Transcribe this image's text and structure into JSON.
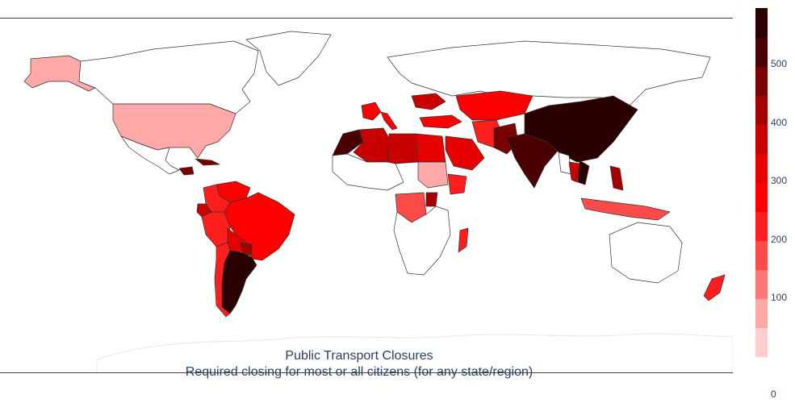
{
  "title": "Public Transport Closures",
  "subtitle": "Required closing for most or all citizens (for any state/region)",
  "colorbar": {
    "ticks": [
      {
        "label": "500",
        "value": 500
      },
      {
        "label": "400",
        "value": 400
      },
      {
        "label": "300",
        "value": 300
      },
      {
        "label": "200",
        "value": 200
      },
      {
        "label": "100",
        "value": 100
      },
      {
        "label": "0",
        "value": 0
      }
    ],
    "range": [
      0,
      595
    ],
    "colors": [
      "#ffcfcf",
      "#ffa8a8",
      "#ff7878",
      "#ff4a4a",
      "#ff1e1e",
      "#ff0000",
      "#e60000",
      "#c80000",
      "#a50000",
      "#7a0000",
      "#4a0000",
      "#2b0000"
    ]
  },
  "regions": [
    {
      "name": "Alaska",
      "value": 60
    },
    {
      "name": "United States",
      "value": 60
    },
    {
      "name": "Canada",
      "value": 0
    },
    {
      "name": "Greenland",
      "value": 0
    },
    {
      "name": "Mexico",
      "value": 0
    },
    {
      "name": "Honduras",
      "value": 470
    },
    {
      "name": "Cuba",
      "value": 470
    },
    {
      "name": "Colombia",
      "value": 220
    },
    {
      "name": "Venezuela",
      "value": 250
    },
    {
      "name": "Ecuador",
      "value": 360
    },
    {
      "name": "Peru",
      "value": 230
    },
    {
      "name": "Bolivia",
      "value": 340
    },
    {
      "name": "Brazil",
      "value": 280
    },
    {
      "name": "Paraguay",
      "value": 420
    },
    {
      "name": "Argentina",
      "value": 570
    },
    {
      "name": "Chile",
      "value": 200
    },
    {
      "name": "Morocco",
      "value": 540
    },
    {
      "name": "Algeria",
      "value": 360
    },
    {
      "name": "Libya",
      "value": 350
    },
    {
      "name": "Egypt",
      "value": 320
    },
    {
      "name": "Sudan",
      "value": 80
    },
    {
      "name": "Ethiopia",
      "value": 240
    },
    {
      "name": "DR Congo",
      "value": 150
    },
    {
      "name": "Uganda",
      "value": 420
    },
    {
      "name": "Madagascar",
      "value": 230
    },
    {
      "name": "Saudi Arabia",
      "value": 330
    },
    {
      "name": "Iran",
      "value": 220
    },
    {
      "name": "Pakistan",
      "value": 480
    },
    {
      "name": "India",
      "value": 520
    },
    {
      "name": "China",
      "value": 590
    },
    {
      "name": "Myanmar",
      "value": 0
    },
    {
      "name": "Thailand",
      "value": 380
    },
    {
      "name": "Vietnam",
      "value": 550
    },
    {
      "name": "Philippines",
      "value": 430
    },
    {
      "name": "Indonesia",
      "value": 150
    },
    {
      "name": "Kazakhstan",
      "value": 270
    },
    {
      "name": "Russia",
      "value": 0
    },
    {
      "name": "Ukraine",
      "value": 360
    },
    {
      "name": "France",
      "value": 250
    },
    {
      "name": "Italy",
      "value": 260
    },
    {
      "name": "Turkey",
      "value": 270
    },
    {
      "name": "Australia",
      "value": 0
    },
    {
      "name": "New Zealand",
      "value": 200
    }
  ]
}
